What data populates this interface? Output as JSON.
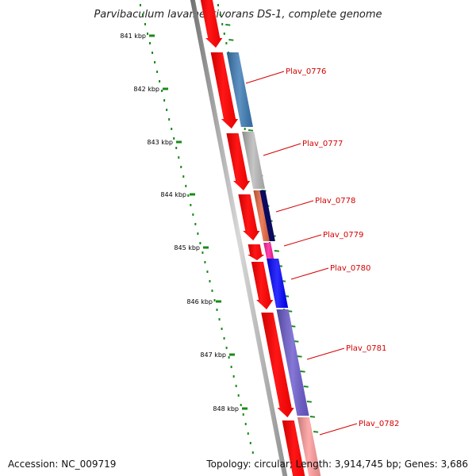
{
  "title": "Parvibaculum lavamentivorans DS-1, complete genome",
  "colors": {
    "forward_cds": "#ff0000",
    "reverse_cds": "#ff0000",
    "backbone": "#9a9a9a",
    "tick": "#1a8a1a",
    "gene_label": "#d40000"
  },
  "scale": {
    "unit": "kbp",
    "ticks": [
      {
        "label": "841 kbp"
      },
      {
        "label": "842 kbp"
      },
      {
        "label": "843 kbp"
      },
      {
        "label": "844 kbp"
      },
      {
        "label": "845 kbp"
      },
      {
        "label": "846 kbp"
      },
      {
        "label": "847 kbp"
      },
      {
        "label": "848 kbp"
      }
    ]
  },
  "genes": [
    {
      "label": "Plav_0776",
      "color": "#3a7ab5"
    },
    {
      "label": "Plav_0777",
      "color": "#b8b8b8"
    },
    {
      "label": "Plav_0778",
      "color": "#e8643c"
    },
    {
      "label": "Plav_0779",
      "color": "#ff1a9a"
    },
    {
      "label": "Plav_0780",
      "color": "#0000ff"
    },
    {
      "label": "Plav_0781",
      "color": "#6a5acd"
    },
    {
      "label": "Plav_0782",
      "color": "#ff9a9a"
    }
  ],
  "footer": {
    "accession": "Accession: NC_009719",
    "summary": "Topology: circular; Length: 3,914,745 bp; Genes: 3,686"
  }
}
